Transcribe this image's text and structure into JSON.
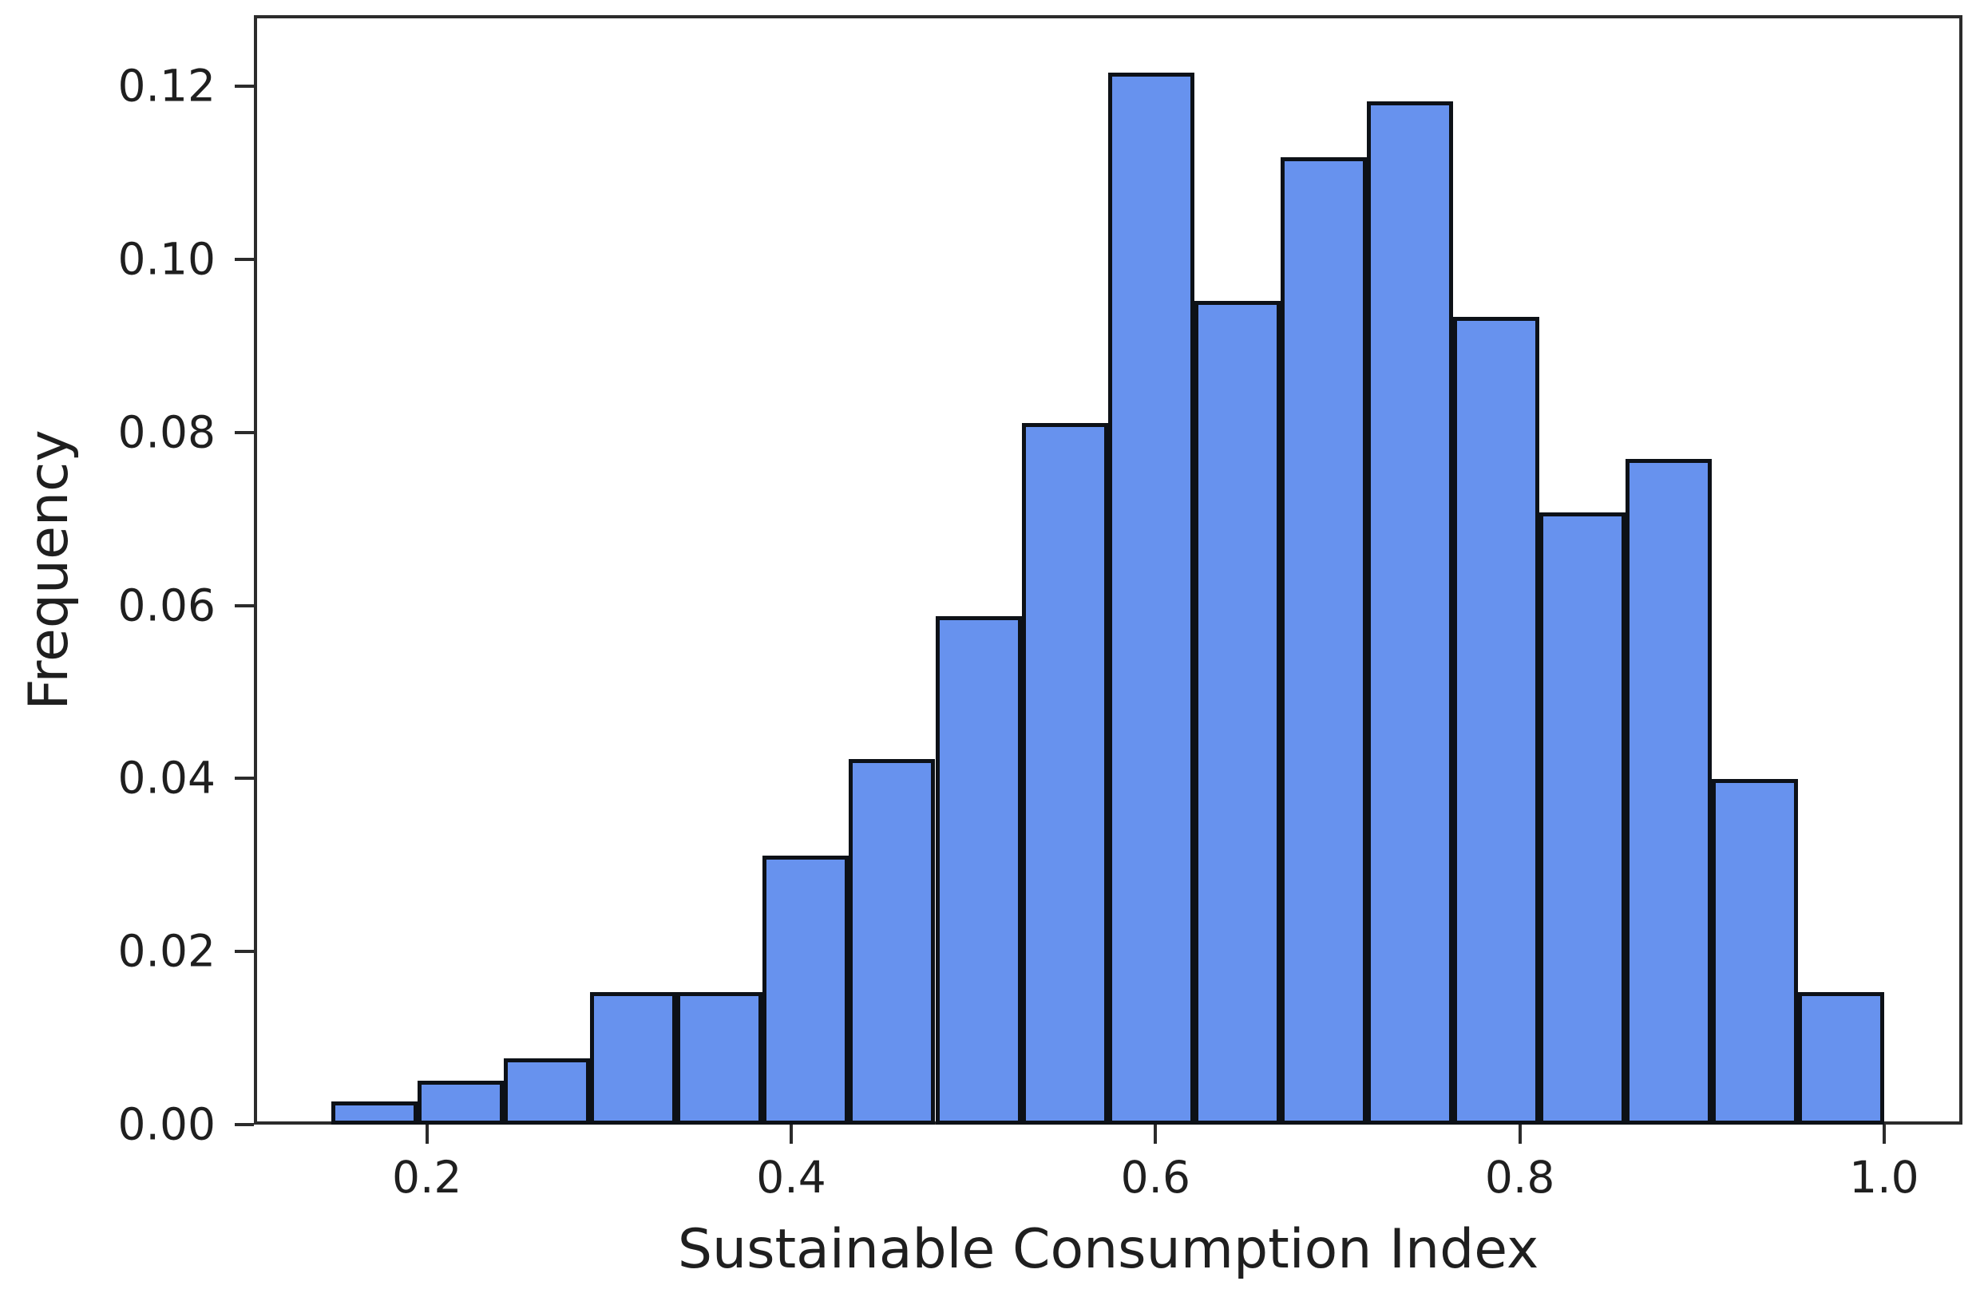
{
  "chart_data": {
    "type": "bar",
    "subtype": "histogram",
    "title": "",
    "xlabel": "Sustainable Consumption Index",
    "ylabel": "Frequency",
    "bin_start": 0.1476,
    "bin_width": 0.047356,
    "values": [
      0.0027,
      0.0051,
      0.0077,
      0.0153,
      0.0153,
      0.0311,
      0.0422,
      0.0588,
      0.0811,
      0.1216,
      0.0952,
      0.1118,
      0.1182,
      0.0933,
      0.0707,
      0.0769,
      0.0399,
      0.0153
    ],
    "x_ticks": [
      {
        "value": 0.2,
        "label": "0.2"
      },
      {
        "value": 0.4,
        "label": "0.4"
      },
      {
        "value": 0.6,
        "label": "0.6"
      },
      {
        "value": 0.8,
        "label": "0.8"
      },
      {
        "value": 1.0,
        "label": "1.0"
      }
    ],
    "y_ticks": [
      {
        "value": 0.0,
        "label": "0.00"
      },
      {
        "value": 0.02,
        "label": "0.02"
      },
      {
        "value": 0.04,
        "label": "0.04"
      },
      {
        "value": 0.06,
        "label": "0.06"
      },
      {
        "value": 0.08,
        "label": "0.08"
      },
      {
        "value": 0.1,
        "label": "0.10"
      },
      {
        "value": 0.12,
        "label": "0.12"
      }
    ],
    "xlim": [
      0.105,
      1.043
    ],
    "ylim": [
      0.0,
      0.1282
    ],
    "grid": false,
    "legend_position": "none",
    "bar_fill_color": "#6792ee",
    "bar_edge_color": "#0d1117",
    "axis_color": "#2b2b2b",
    "text_color": "#1f1f1f",
    "background_color": "#ffffff"
  }
}
